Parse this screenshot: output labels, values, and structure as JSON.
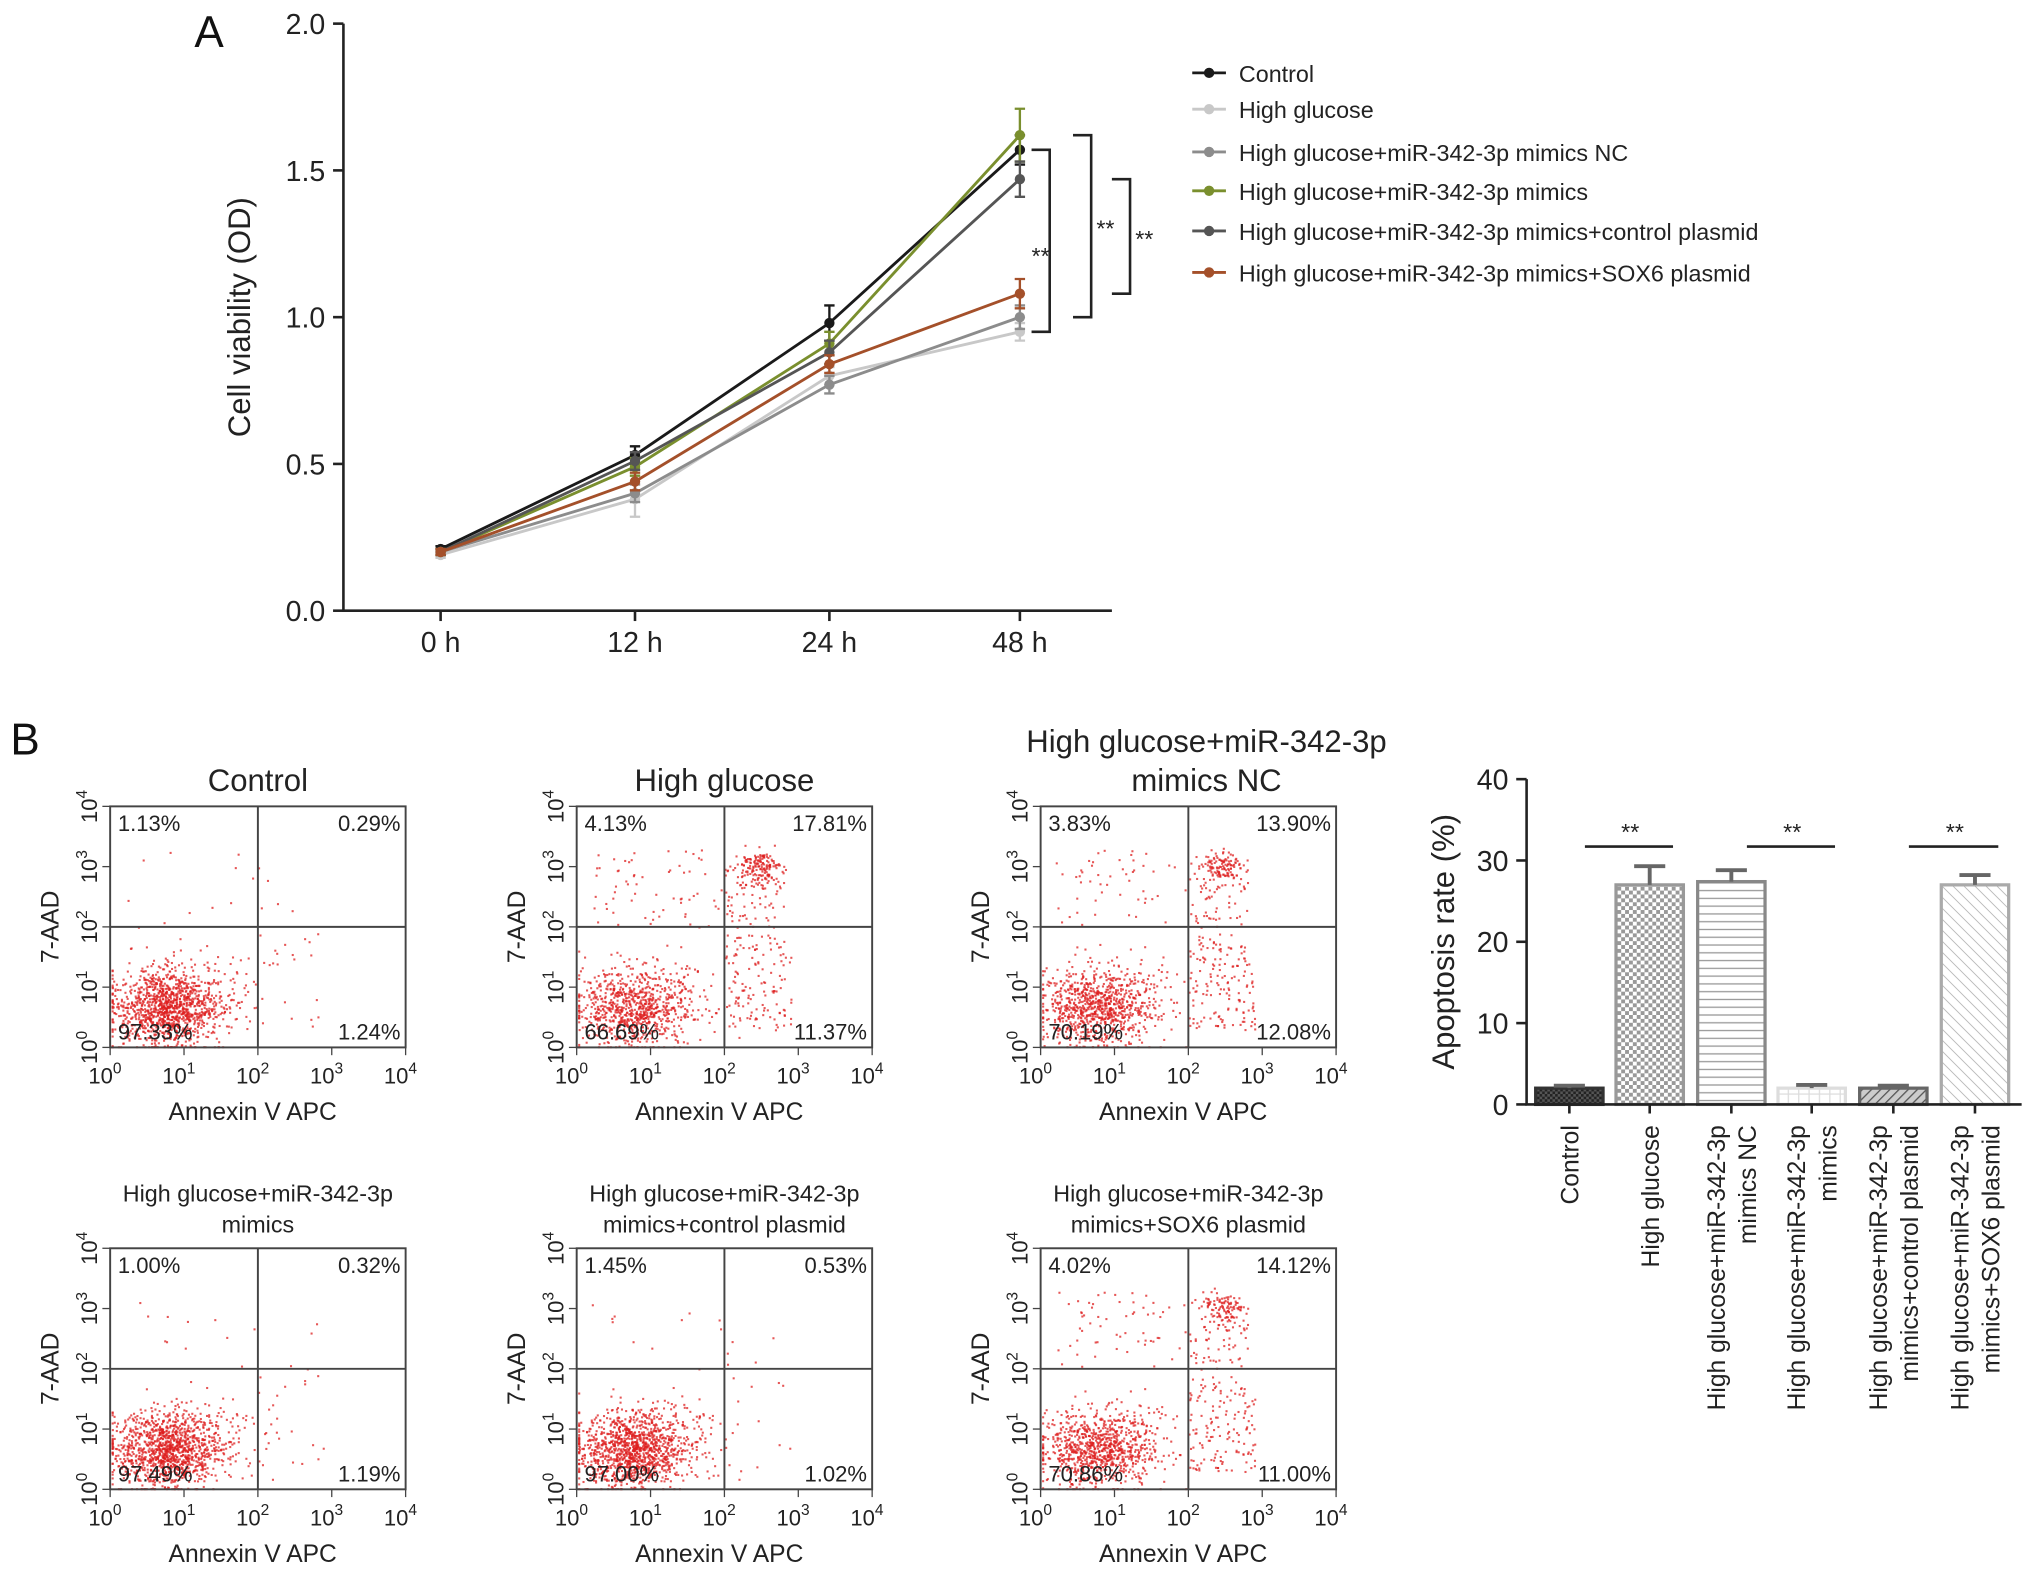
{
  "chart_data": [
    {
      "panel_label": "A",
      "type": "line",
      "ylabel": "Cell viability (OD)",
      "xlabel": "",
      "categories": [
        "0 h",
        "12 h",
        "24 h",
        "48 h"
      ],
      "ylim": [
        0,
        2.0
      ],
      "yticks": [
        "0.0",
        "0.5",
        "1.0",
        "1.5",
        "2.0"
      ],
      "legend_position": "right",
      "series": [
        {
          "name": "Control",
          "color": "#1a1a1a",
          "values": [
            0.21,
            0.53,
            0.98,
            1.57
          ],
          "errors": [
            0.01,
            0.03,
            0.06,
            0.05
          ]
        },
        {
          "name": "High glucose",
          "color": "#c8c8c8",
          "values": [
            0.19,
            0.38,
            0.8,
            0.95
          ],
          "errors": [
            0.01,
            0.06,
            0.03,
            0.03
          ]
        },
        {
          "name": "High glucose+miR-342-3p mimics NC",
          "color": "#8c8c8c",
          "values": [
            0.2,
            0.4,
            0.77,
            1.0
          ],
          "errors": [
            0.01,
            0.03,
            0.03,
            0.04
          ]
        },
        {
          "name": "High glucose+miR-342-3p mimics",
          "color": "#7a8f2e",
          "values": [
            0.2,
            0.49,
            0.91,
            1.62
          ],
          "errors": [
            0.01,
            0.03,
            0.04,
            0.09
          ]
        },
        {
          "name": "High glucose+miR-342-3p mimics+control plasmid",
          "color": "#555555",
          "values": [
            0.2,
            0.51,
            0.88,
            1.47
          ],
          "errors": [
            0.01,
            0.03,
            0.04,
            0.06
          ]
        },
        {
          "name": "High glucose+miR-342-3p mimics+SOX6 plasmid",
          "color": "#a4502a",
          "values": [
            0.2,
            0.44,
            0.84,
            1.08
          ],
          "errors": [
            0.01,
            0.03,
            0.03,
            0.05
          ]
        }
      ],
      "significance": [
        {
          "between": [
            "Control",
            "High glucose"
          ],
          "label": "**"
        },
        {
          "between": [
            "High glucose+miR-342-3p mimics",
            "High glucose+miR-342-3p mimics NC"
          ],
          "label": "**"
        },
        {
          "between": [
            "High glucose+miR-342-3p mimics+control plasmid",
            "High glucose+miR-342-3p mimics+SOX6 plasmid"
          ],
          "label": "**"
        }
      ]
    },
    {
      "panel_label": "B",
      "type": "scatter",
      "subtype": "flow-cytometry-quadrants",
      "xlabel": "Annexin V APC",
      "ylabel": "7-AAD",
      "scale": "log",
      "xlim": [
        1,
        10000
      ],
      "ylim": [
        1,
        10000
      ],
      "gate": {
        "x": 100,
        "y": 100
      },
      "tick_exponents": [
        "0",
        "1",
        "2",
        "3",
        "4"
      ],
      "point_color": "#dd1f1f",
      "plots": [
        {
          "title": [
            "Control"
          ],
          "quadrants": {
            "ul": "1.13%",
            "ur": "0.29%",
            "ll": "97.33%",
            "lr": "1.24%"
          }
        },
        {
          "title": [
            "High glucose"
          ],
          "quadrants": {
            "ul": "4.13%",
            "ur": "17.81%",
            "ll": "66.69%",
            "lr": "11.37%"
          }
        },
        {
          "title": [
            "High glucose+miR-342-3p",
            "mimics NC"
          ],
          "quadrants": {
            "ul": "3.83%",
            "ur": "13.90%",
            "ll": "70.19%",
            "lr": "12.08%"
          }
        },
        {
          "title": [
            "High glucose+miR-342-3p",
            "mimics"
          ],
          "quadrants": {
            "ul": "1.00%",
            "ur": "0.32%",
            "ll": "97.49%",
            "lr": "1.19%"
          }
        },
        {
          "title": [
            "High glucose+miR-342-3p",
            "mimics+control plasmid"
          ],
          "quadrants": {
            "ul": "1.45%",
            "ur": "0.53%",
            "ll": "97.00%",
            "lr": "1.02%"
          }
        },
        {
          "title": [
            "High glucose+miR-342-3p",
            "mimics+SOX6 plasmid"
          ],
          "quadrants": {
            "ul": "4.02%",
            "ur": "14.12%",
            "ll": "70.86%",
            "lr": "11.00%"
          }
        }
      ]
    },
    {
      "type": "bar",
      "ylabel": "Apoptosis rate (%)",
      "xlabel": "",
      "ylim": [
        0,
        40
      ],
      "yticks": [
        "0",
        "10",
        "20",
        "30",
        "40"
      ],
      "categories": [
        [
          "Control"
        ],
        [
          "High glucose"
        ],
        [
          "High glucose+miR-342-3p",
          "mimics NC"
        ],
        [
          "High glucose+miR-342-3p",
          "mimics"
        ],
        [
          "High glucose+miR-342-3p",
          "mimics+control plasmid"
        ],
        [
          "High glucose+miR-342-3p",
          "mimics+SOX6 plasmid"
        ]
      ],
      "values": [
        2.0,
        27.0,
        27.4,
        2.0,
        2.0,
        27.0
      ],
      "errors": [
        0.3,
        2.3,
        1.4,
        0.4,
        0.3,
        1.2
      ],
      "patterns": [
        "dense-dark-check",
        "checker",
        "horizontal-lines",
        "light-grid",
        "diagonal-dark",
        "diagonal"
      ],
      "significance": [
        {
          "between": [
            0,
            1
          ],
          "label": "**"
        },
        {
          "between": [
            2,
            3
          ],
          "label": "**"
        },
        {
          "between": [
            4,
            5
          ],
          "label": "**"
        }
      ]
    }
  ]
}
